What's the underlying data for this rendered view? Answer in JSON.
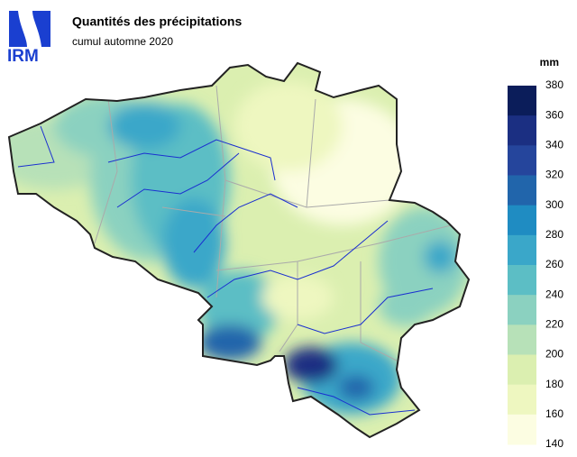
{
  "logo": {
    "text": "IRM"
  },
  "header": {
    "title": "Quantités des précipitations",
    "subtitle": "cumul automne 2020"
  },
  "legend": {
    "unit": "mm",
    "ticks": [
      380,
      360,
      340,
      320,
      300,
      280,
      260,
      240,
      220,
      200,
      180,
      160,
      140
    ],
    "colors": [
      "#0b1d5a",
      "#1b2f82",
      "#25459c",
      "#2165ab",
      "#1f8cc2",
      "#3aa7c9",
      "#5cbec5",
      "#8bd1c0",
      "#b7e1b8",
      "#dbefb0",
      "#eef7c0",
      "#fcfde2"
    ]
  }
}
